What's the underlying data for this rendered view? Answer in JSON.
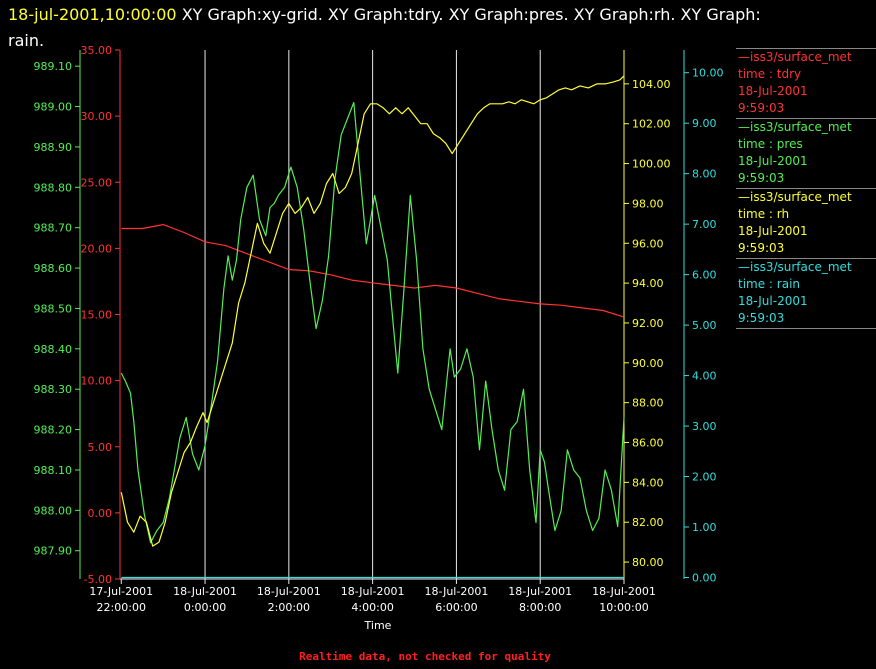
{
  "header": {
    "date_label": "18-jul-2001,10:00:00",
    "graphs_label": "XY Graph:xy-grid.  XY Graph:tdry.  XY Graph:pres.  XY Graph:rh.  XY Graph:",
    "graphs_label_2": "rain."
  },
  "legend": [
    {
      "source": "—iss3/surface_met",
      "field": "time : tdry",
      "date": "18-Jul-2001",
      "time": "9:59:03",
      "color": "#ff3333"
    },
    {
      "source": "—iss3/surface_met",
      "field": "time : pres",
      "date": "18-Jul-2001",
      "time": "9:59:03",
      "color": "#55ee55"
    },
    {
      "source": "—iss3/surface_met",
      "field": "time : rh",
      "date": "18-Jul-2001",
      "time": "9:59:03",
      "color": "#ffff33"
    },
    {
      "source": "—iss3/surface_met",
      "field": "time : rain",
      "date": "18-Jul-2001",
      "time": "9:59:03",
      "color": "#33dddd"
    }
  ],
  "footer": {
    "quality_note": "Realtime data, not checked for quality"
  },
  "chart_data": {
    "type": "line",
    "xlabel": "Time",
    "x_range": [
      "2001-07-17 21:58",
      "2001-07-18 10:00"
    ],
    "x_ticks": [
      {
        "date": "17-Jul-2001",
        "time": "22:00:00"
      },
      {
        "date": "18-Jul-2001",
        "time": "0:00:00"
      },
      {
        "date": "18-Jul-2001",
        "time": "2:00:00"
      },
      {
        "date": "18-Jul-2001",
        "time": "4:00:00"
      },
      {
        "date": "18-Jul-2001",
        "time": "6:00:00"
      },
      {
        "date": "18-Jul-2001",
        "time": "8:00:00"
      },
      {
        "date": "18-Jul-2001",
        "time": "10:00:00"
      }
    ],
    "grid": "vertical",
    "axes": [
      {
        "name": "tdry",
        "side": "left-inner",
        "color": "#ff3333",
        "range": [
          -5,
          35
        ],
        "ticks": [
          "-5.00",
          "0.00",
          "5.00",
          "10.00",
          "15.00",
          "20.00",
          "25.00",
          "30.00",
          "35.00"
        ]
      },
      {
        "name": "pres",
        "side": "left-outer",
        "color": "#55ee55",
        "range": [
          987.83,
          989.14
        ],
        "ticks": [
          "987.90",
          "988.00",
          "988.10",
          "988.20",
          "988.30",
          "988.40",
          "988.50",
          "988.60",
          "988.70",
          "988.80",
          "988.90",
          "989.00",
          "989.10"
        ]
      },
      {
        "name": "rh",
        "side": "right-inner",
        "color": "#ffff33",
        "range": [
          79.15,
          105.7
        ],
        "ticks": [
          "80.00",
          "82.00",
          "84.00",
          "86.00",
          "88.00",
          "90.00",
          "92.00",
          "94.00",
          "96.00",
          "98.00",
          "100.00",
          "102.00",
          "104.00"
        ]
      },
      {
        "name": "rain",
        "side": "right-outer",
        "color": "#33dddd",
        "range": [
          -0.03,
          10.45
        ],
        "ticks": [
          "0.00",
          "1.00",
          "2.00",
          "3.00",
          "4.00",
          "5.00",
          "6.00",
          "7.00",
          "8.00",
          "9.00",
          "10.00"
        ]
      }
    ],
    "series": [
      {
        "name": "tdry",
        "axis": "tdry",
        "color": "#ff3333",
        "x": [
          -2.0,
          -1.5,
          -1.0,
          -0.5,
          0.0,
          0.5,
          1.0,
          1.5,
          2.0,
          2.5,
          3.0,
          3.5,
          4.0,
          4.5,
          5.0,
          5.5,
          6.0,
          6.5,
          7.0,
          7.5,
          8.0,
          8.5,
          9.0,
          9.5,
          10.0
        ],
        "y": [
          21.5,
          21.5,
          21.8,
          21.2,
          20.5,
          20.2,
          19.6,
          19.0,
          18.4,
          18.3,
          18.0,
          17.6,
          17.4,
          17.2,
          17.0,
          17.2,
          17.0,
          16.6,
          16.2,
          16.0,
          15.8,
          15.7,
          15.5,
          15.3,
          14.8
        ]
      },
      {
        "name": "pres",
        "axis": "pres",
        "color": "#55ee55",
        "x": [
          -2.0,
          -1.9,
          -1.78,
          -1.7,
          -1.6,
          -1.45,
          -1.3,
          -1.15,
          -1.0,
          -0.85,
          -0.7,
          -0.6,
          -0.45,
          -0.3,
          -0.15,
          0.0,
          0.15,
          0.3,
          0.45,
          0.55,
          0.65,
          0.75,
          0.85,
          1.0,
          1.15,
          1.3,
          1.45,
          1.55,
          1.65,
          1.75,
          1.9,
          2.05,
          2.2,
          2.35,
          2.5,
          2.65,
          2.8,
          2.95,
          3.1,
          3.25,
          3.4,
          3.55,
          3.7,
          3.85,
          3.95,
          4.05,
          4.2,
          4.35,
          4.5,
          4.6,
          4.75,
          4.9,
          5.05,
          5.2,
          5.35,
          5.5,
          5.65,
          5.75,
          5.85,
          5.95,
          6.1,
          6.25,
          6.4,
          6.55,
          6.7,
          6.85,
          7.0,
          7.15,
          7.3,
          7.45,
          7.6,
          7.75,
          7.9,
          8.0,
          8.1,
          8.2,
          8.35,
          8.5,
          8.65,
          8.8,
          8.95,
          9.1,
          9.25,
          9.4,
          9.55,
          9.7,
          9.85,
          10.0
        ],
        "y": [
          988.34,
          988.32,
          988.29,
          988.22,
          988.1,
          987.99,
          987.92,
          987.95,
          987.97,
          988.03,
          988.12,
          988.18,
          988.23,
          988.14,
          988.1,
          988.16,
          988.26,
          988.37,
          988.55,
          988.63,
          988.57,
          988.62,
          988.72,
          988.8,
          988.83,
          988.72,
          988.68,
          988.75,
          988.76,
          988.78,
          988.8,
          988.85,
          988.8,
          988.7,
          988.57,
          988.45,
          988.52,
          988.63,
          988.82,
          988.93,
          988.97,
          989.01,
          988.83,
          988.66,
          988.72,
          988.78,
          988.7,
          988.62,
          988.45,
          988.34,
          988.55,
          988.78,
          988.62,
          988.4,
          988.3,
          988.25,
          988.2,
          988.3,
          988.4,
          988.33,
          988.35,
          988.4,
          988.33,
          988.15,
          988.32,
          988.2,
          988.1,
          988.05,
          988.2,
          988.22,
          988.3,
          988.1,
          987.97,
          988.15,
          988.12,
          988.05,
          987.95,
          988.0,
          988.15,
          988.1,
          988.08,
          988.0,
          987.95,
          987.98,
          988.1,
          988.05,
          987.96,
          988.23
        ]
      },
      {
        "name": "rh",
        "axis": "rh",
        "color": "#ffff33",
        "x": [
          -2.0,
          -1.85,
          -1.7,
          -1.55,
          -1.4,
          -1.25,
          -1.1,
          -0.95,
          -0.8,
          -0.65,
          -0.5,
          -0.35,
          -0.2,
          -0.05,
          0.05,
          0.2,
          0.35,
          0.5,
          0.65,
          0.8,
          0.95,
          1.1,
          1.25,
          1.4,
          1.55,
          1.7,
          1.85,
          2.0,
          2.15,
          2.3,
          2.45,
          2.6,
          2.75,
          2.9,
          3.05,
          3.2,
          3.35,
          3.5,
          3.65,
          3.8,
          3.95,
          4.1,
          4.25,
          4.4,
          4.55,
          4.7,
          4.85,
          5.0,
          5.15,
          5.3,
          5.45,
          5.6,
          5.75,
          5.9,
          6.05,
          6.2,
          6.35,
          6.5,
          6.65,
          6.8,
          6.95,
          7.1,
          7.25,
          7.4,
          7.55,
          7.7,
          7.85,
          8.0,
          8.15,
          8.3,
          8.45,
          8.6,
          8.75,
          8.95,
          9.15,
          9.35,
          9.55,
          9.75,
          9.9,
          10.0
        ],
        "y": [
          83.5,
          82.0,
          81.5,
          82.3,
          82.0,
          80.8,
          81.0,
          82.0,
          83.5,
          84.5,
          85.5,
          86.0,
          86.8,
          87.5,
          87.0,
          88.0,
          89.0,
          90.0,
          91.0,
          93.0,
          94.0,
          95.5,
          97.0,
          96.0,
          95.5,
          96.5,
          97.5,
          98.0,
          97.5,
          97.8,
          98.3,
          97.5,
          98.0,
          99.0,
          99.5,
          98.5,
          98.8,
          99.5,
          101.0,
          102.5,
          103.0,
          103.0,
          102.8,
          102.5,
          102.8,
          102.5,
          102.8,
          102.4,
          102.0,
          102.0,
          101.5,
          101.3,
          101.0,
          100.5,
          101.0,
          101.5,
          102.0,
          102.5,
          102.8,
          103.0,
          103.0,
          103.0,
          103.1,
          103.0,
          103.2,
          103.1,
          103.0,
          103.2,
          103.3,
          103.5,
          103.7,
          103.8,
          103.7,
          103.9,
          103.8,
          104.0,
          104.0,
          104.1,
          104.2,
          104.4
        ]
      },
      {
        "name": "rain",
        "axis": "rain",
        "color": "#33dddd",
        "x": [
          -2.0,
          10.0
        ],
        "y": [
          0.0,
          0.0
        ]
      }
    ]
  }
}
